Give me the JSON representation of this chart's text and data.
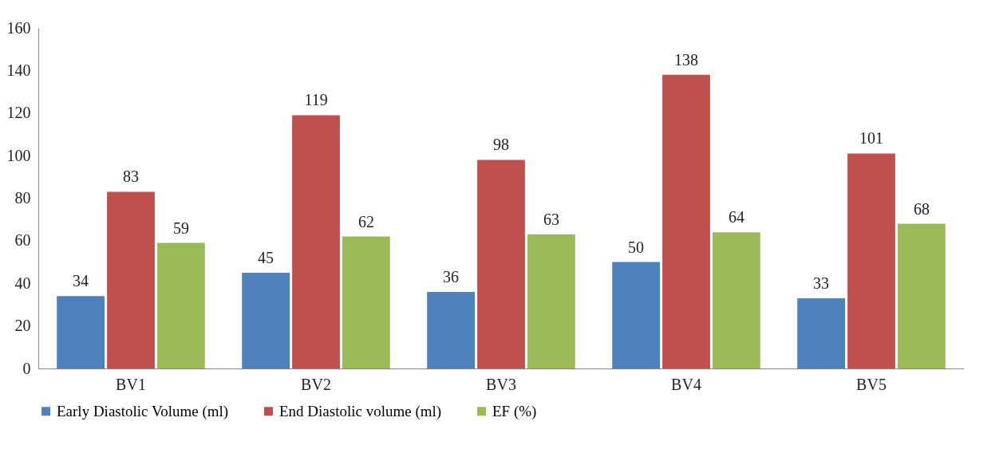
{
  "chart_data": {
    "type": "bar",
    "categories": [
      "BV1",
      "BV2",
      "BV3",
      "BV4",
      "BV5"
    ],
    "series": [
      {
        "name": "Early Diastolic Volume (ml)",
        "color": "#4f81bd",
        "values": [
          34,
          45,
          36,
          50,
          33
        ]
      },
      {
        "name": "End Diastolic volume (ml)",
        "color": "#c0504d",
        "values": [
          83,
          119,
          98,
          138,
          101
        ]
      },
      {
        "name": "EF (%)",
        "color": "#9bbb59",
        "values": [
          59,
          62,
          63,
          64,
          68
        ]
      }
    ],
    "ylim": [
      0,
      160
    ],
    "yticks": [
      0,
      20,
      40,
      60,
      80,
      100,
      120,
      140,
      160
    ],
    "grid": false,
    "legend": "bottom",
    "data_labels": true
  }
}
